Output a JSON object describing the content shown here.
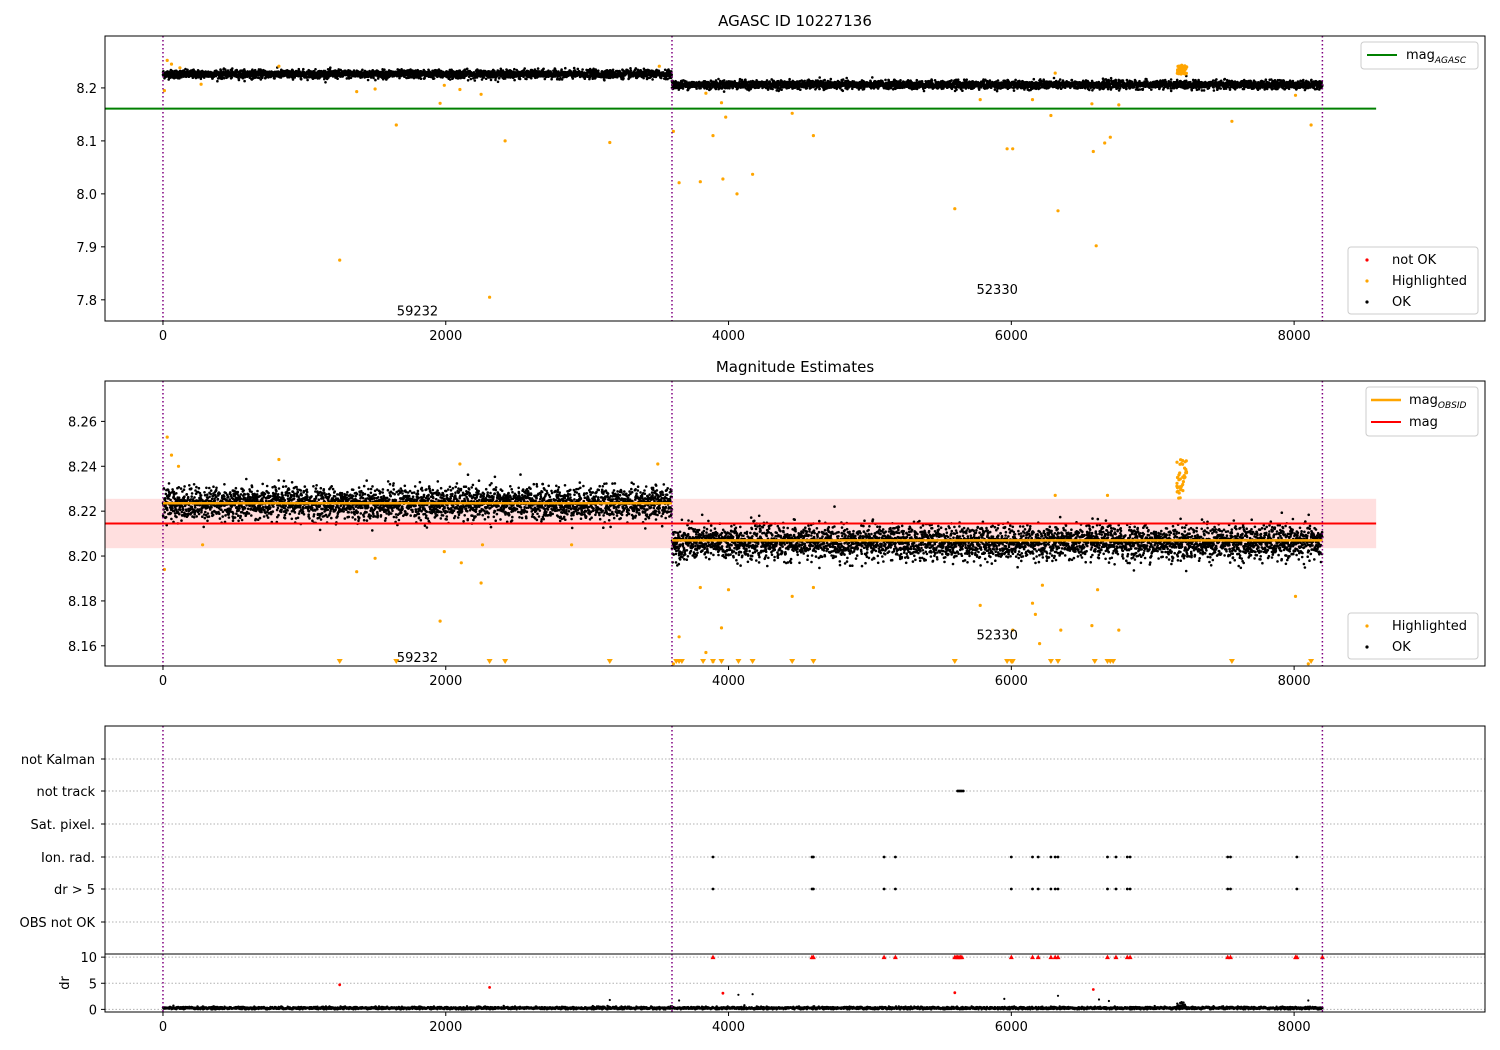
{
  "colors": {
    "ok": "#000000",
    "highlighted": "#ffa500",
    "not_ok": "#ff0000",
    "mag_agasc": "#008000",
    "mag_obsid": "#ffa500",
    "mag": "#ff0000",
    "mag_band": "#ffc0c0",
    "obs_boundary": "#800080",
    "grid": "#b0b0b0"
  },
  "chart_data": [
    {
      "type": "scatter",
      "title": "AGASC ID 10227136",
      "xlim": [
        -410,
        9350
      ],
      "ylim": [
        7.76,
        8.298
      ],
      "x_ticks": [
        0,
        2000,
        4000,
        6000,
        8000
      ],
      "y_ticks": [
        7.8,
        7.9,
        8.0,
        8.1,
        8.2
      ],
      "y_tick_labels": [
        "7.8",
        "7.9",
        "8.0",
        "8.1",
        "8.2"
      ],
      "obs_boundaries": [
        0,
        3600,
        8200
      ],
      "obs_labels": [
        {
          "text": "59232",
          "x": 1800,
          "y": 7.78
        },
        {
          "text": "52330",
          "x": 5900,
          "y": 7.82
        }
      ],
      "reference_lines": [
        {
          "name": "mag_AGASC",
          "y": 8.161,
          "x_range": [
            -410,
            8580
          ],
          "color_key": "mag_agasc"
        }
      ],
      "segments": [
        {
          "x_range": [
            0,
            3600
          ],
          "center": 8.226,
          "spread": 0.007
        },
        {
          "x_range": [
            3600,
            8200
          ],
          "center": 8.206,
          "spread": 0.007
        }
      ],
      "highlighted_points": [
        [
          10,
          8.195
        ],
        [
          30,
          8.252
        ],
        [
          60,
          8.245
        ],
        [
          120,
          8.238
        ],
        [
          270,
          8.207
        ],
        [
          820,
          8.241
        ],
        [
          1370,
          8.193
        ],
        [
          1500,
          8.198
        ],
        [
          1650,
          8.13
        ],
        [
          1960,
          8.171
        ],
        [
          1990,
          8.205
        ],
        [
          2100,
          8.197
        ],
        [
          2250,
          8.188
        ],
        [
          2420,
          8.1
        ],
        [
          3160,
          8.097
        ],
        [
          3510,
          8.241
        ],
        [
          3610,
          8.118
        ],
        [
          3650,
          8.021
        ],
        [
          3800,
          8.023
        ],
        [
          3840,
          8.19
        ],
        [
          3890,
          8.11
        ],
        [
          3950,
          8.172
        ],
        [
          3980,
          8.145
        ],
        [
          3960,
          8.028
        ],
        [
          4060,
          8.0
        ],
        [
          4170,
          8.037
        ],
        [
          4450,
          8.152
        ],
        [
          4600,
          8.11
        ],
        [
          5600,
          7.972
        ],
        [
          5780,
          8.178
        ],
        [
          5970,
          8.085
        ],
        [
          6010,
          8.085
        ],
        [
          6150,
          8.178
        ],
        [
          6280,
          8.148
        ],
        [
          6310,
          8.228
        ],
        [
          6330,
          7.968
        ],
        [
          6570,
          8.17
        ],
        [
          6580,
          8.08
        ],
        [
          6600,
          7.902
        ],
        [
          6660,
          8.096
        ],
        [
          6700,
          8.107
        ],
        [
          6760,
          8.168
        ],
        [
          7560,
          8.137
        ],
        [
          8010,
          8.186
        ],
        [
          8120,
          8.13
        ],
        [
          1250,
          7.875
        ],
        [
          2310,
          7.805
        ]
      ],
      "highlighted_cluster": {
        "x_range": [
          7170,
          7240
        ],
        "y_range": [
          8.225,
          8.243
        ]
      },
      "legend_upper": {
        "placement": "upper right",
        "entries": [
          "mag$_{AGASC}$"
        ]
      },
      "legend_lower": {
        "placement": "lower right",
        "entries": [
          "not OK",
          "Highlighted",
          "OK"
        ]
      }
    },
    {
      "type": "scatter",
      "title": "Magnitude Estimates",
      "xlim": [
        -410,
        9350
      ],
      "ylim": [
        8.151,
        8.278
      ],
      "x_ticks": [
        0,
        2000,
        4000,
        6000,
        8000
      ],
      "y_ticks": [
        8.16,
        8.18,
        8.2,
        8.22,
        8.24,
        8.26
      ],
      "y_tick_labels": [
        "8.16",
        "8.18",
        "8.20",
        "8.22",
        "8.24",
        "8.26"
      ],
      "obs_boundaries": [
        0,
        3600,
        8200
      ],
      "obs_labels": [
        {
          "text": "59232",
          "x": 1800,
          "y": 8.155
        },
        {
          "text": "52330",
          "x": 5900,
          "y": 8.165
        }
      ],
      "mag_line": {
        "name": "mag",
        "y": 8.2145,
        "x_range": [
          -410,
          8580
        ],
        "band": [
          8.2035,
          8.2255
        ]
      },
      "obsid_lines": [
        {
          "name": "mag_OBSID",
          "y": 8.2235,
          "x_range": [
            0,
            3600
          ]
        },
        {
          "name": "mag_OBSID",
          "y": 8.207,
          "x_range": [
            3600,
            8200
          ]
        }
      ],
      "segments": [
        {
          "x_range": [
            0,
            3600
          ],
          "center": 8.2235,
          "spread": 0.0065
        },
        {
          "x_range": [
            3600,
            8200
          ],
          "center": 8.206,
          "spread": 0.0068
        }
      ],
      "highlighted_points": [
        [
          10,
          8.194
        ],
        [
          30,
          8.253
        ],
        [
          60,
          8.245
        ],
        [
          110,
          8.24
        ],
        [
          280,
          8.205
        ],
        [
          820,
          8.243
        ],
        [
          1370,
          8.193
        ],
        [
          1500,
          8.199
        ],
        [
          1960,
          8.171
        ],
        [
          1990,
          8.202
        ],
        [
          2110,
          8.197
        ],
        [
          2100,
          8.241
        ],
        [
          2250,
          8.188
        ],
        [
          2260,
          8.205
        ],
        [
          2890,
          8.205
        ],
        [
          3500,
          8.241
        ],
        [
          3610,
          8.152
        ],
        [
          3650,
          8.164
        ],
        [
          3800,
          8.186
        ],
        [
          3840,
          8.157
        ],
        [
          3890,
          8.153
        ],
        [
          3950,
          8.168
        ],
        [
          4000,
          8.185
        ],
        [
          4450,
          8.182
        ],
        [
          4600,
          8.186
        ],
        [
          5780,
          8.178
        ],
        [
          6010,
          8.167
        ],
        [
          6150,
          8.179
        ],
        [
          6170,
          8.174
        ],
        [
          6200,
          8.161
        ],
        [
          6220,
          8.187
        ],
        [
          6310,
          8.227
        ],
        [
          6350,
          8.167
        ],
        [
          6570,
          8.169
        ],
        [
          6610,
          8.185
        ],
        [
          6680,
          8.227
        ],
        [
          6760,
          8.167
        ],
        [
          7560,
          8.207
        ],
        [
          8010,
          8.182
        ],
        [
          8100,
          8.152
        ]
      ],
      "highlighted_cluster": {
        "x_range": [
          7170,
          7240
        ],
        "y_range": [
          8.225,
          8.244
        ]
      },
      "off_scale_markers_x": [
        1250,
        1650,
        2310,
        2420,
        3160,
        3630,
        3650,
        3670,
        3820,
        3890,
        3950,
        4070,
        4170,
        4450,
        4600,
        5600,
        5970,
        6000,
        6010,
        6280,
        6330,
        6590,
        6680,
        6700,
        6720,
        7560,
        8120
      ],
      "legend_upper": {
        "placement": "upper right",
        "entries": [
          "mag$_{OBSID}$",
          "mag"
        ]
      },
      "legend_lower": {
        "placement": "lower right",
        "entries": [
          "Highlighted",
          "OK"
        ]
      }
    },
    {
      "type": "scatter",
      "title": "",
      "xlim": [
        -410,
        9350
      ],
      "obs_boundaries": [
        0,
        3600,
        8200
      ],
      "flag_rows": [
        "not Kalman",
        "not track",
        "Sat. pixel.",
        "Ion. rad.",
        "dr > 5",
        "OBS not OK"
      ],
      "flag_points": {
        "not track": [
          5620,
          5630,
          5640,
          5650,
          5660
        ],
        "Ion. rad.": [
          3890,
          4590,
          4600,
          5100,
          5180,
          6000,
          6150,
          6190,
          6280,
          6310,
          6330,
          6680,
          6740,
          6820,
          6840,
          7530,
          7550,
          8020
        ],
        "dr > 5": [
          3890,
          4590,
          4600,
          5100,
          5180,
          6000,
          6150,
          6190,
          6280,
          6310,
          6330,
          6680,
          6740,
          6820,
          6840,
          7530,
          7550,
          8020
        ]
      },
      "dr_ylim": [
        -0.5,
        10.6
      ],
      "dr_y_ticks": [
        0,
        5,
        10
      ],
      "dr_y_tick_labels": [
        "0",
        "5",
        "10"
      ],
      "dr_ylabel": "dr",
      "dr_clipped_points_x": [
        3890,
        4590,
        4600,
        5100,
        5180,
        5600,
        5610,
        5620,
        5630,
        5640,
        5650,
        6000,
        6150,
        6190,
        6280,
        6310,
        6330,
        6680,
        6740,
        6820,
        6840,
        7530,
        7550,
        8010,
        8020,
        8200
      ],
      "dr_red_points": [
        [
          1250,
          4.7
        ],
        [
          2310,
          4.2
        ],
        [
          3960,
          3.1
        ],
        [
          5600,
          3.2
        ],
        [
          6580,
          3.8
        ]
      ],
      "dr_outlier_points": [
        [
          3160,
          1.8
        ],
        [
          3650,
          1.7
        ],
        [
          4070,
          2.8
        ],
        [
          4170,
          2.9
        ],
        [
          5950,
          2.0
        ],
        [
          6330,
          2.6
        ],
        [
          6620,
          1.9
        ],
        [
          6690,
          1.6
        ],
        [
          8100,
          1.7
        ]
      ],
      "dr_series": {
        "x_range": [
          0,
          8200
        ],
        "baseline": 0.25,
        "spread": 0.25
      }
    }
  ]
}
